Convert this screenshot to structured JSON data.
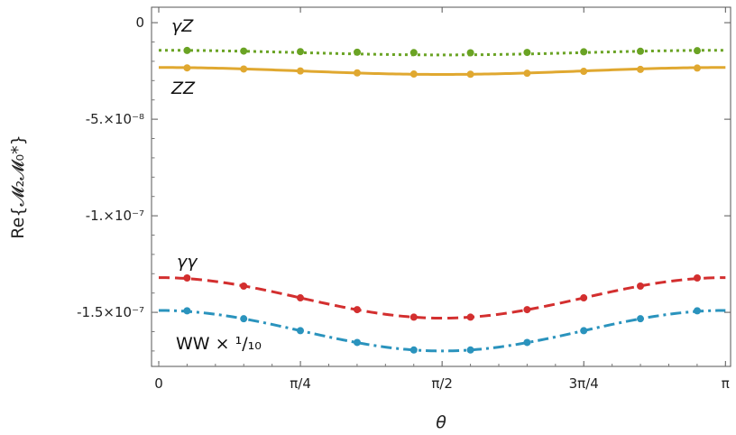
{
  "chart_data": {
    "type": "line",
    "xlabel": "θ",
    "ylabel": "Re{𝓜₂𝓜₀*}",
    "xlim": [
      -0.04,
      3.17
    ],
    "ylim": [
      -1.78e-07,
      8e-09
    ],
    "x_ticks": [
      {
        "value": 0,
        "label": "0"
      },
      {
        "value": 0.7854,
        "label": "π/4"
      },
      {
        "value": 1.5708,
        "label": "π/2"
      },
      {
        "value": 2.3562,
        "label": "3π/4"
      },
      {
        "value": 3.1416,
        "label": "π"
      }
    ],
    "y_ticks": [
      {
        "value": 0,
        "label": "0"
      },
      {
        "value": -5e-08,
        "label": "-5.×10⁻⁸"
      },
      {
        "value": -1e-07,
        "label": "-1.×10⁻⁷"
      },
      {
        "value": -1.5e-07,
        "label": "-1.5×10⁻⁷"
      }
    ],
    "grid": false,
    "marker_x": [
      0.157,
      0.471,
      0.785,
      1.1,
      1.414,
      1.728,
      2.042,
      2.356,
      2.67,
      2.985
    ],
    "series": [
      {
        "name": "γZ",
        "color": "#6aa324",
        "dash": "dotted",
        "a": -1.55e-08,
        "b": 1.2e-09,
        "markers": [
          -1.44e-08,
          -1.47e-08,
          -1.5e-08,
          -1.53e-08,
          -1.55e-08,
          -1.56e-08,
          -1.54e-08,
          -1.51e-08,
          -1.48e-08,
          -1.45e-08
        ]
      },
      {
        "name": "ZZ",
        "color": "#e0a830",
        "dash": "solid",
        "a": -2.5e-08,
        "b": 1.8e-09,
        "markers": [
          -2.34e-08,
          -2.4e-08,
          -2.5e-08,
          -2.6e-08,
          -2.66e-08,
          -2.67e-08,
          -2.62e-08,
          -2.52e-08,
          -2.42e-08,
          -2.35e-08
        ]
      },
      {
        "name": "γγ",
        "color": "#d32f2f",
        "dash": "dashed",
        "a": -1.425e-07,
        "b": 1.05e-08,
        "markers": [
          -1.322e-07,
          -1.364e-07,
          -1.425e-07,
          -1.486e-07,
          -1.525e-07,
          -1.525e-07,
          -1.486e-07,
          -1.425e-07,
          -1.364e-07,
          -1.322e-07
        ]
      },
      {
        "name": "WW × ¹/₁₀",
        "color": "#2a93bd",
        "dash": "dashdot",
        "a": -1.595e-07,
        "b": 1.05e-08,
        "markers": [
          -1.492e-07,
          -1.533e-07,
          -1.595e-07,
          -1.656e-07,
          -1.695e-07,
          -1.695e-07,
          -1.656e-07,
          -1.595e-07,
          -1.533e-07,
          -1.492e-07
        ]
      }
    ]
  }
}
